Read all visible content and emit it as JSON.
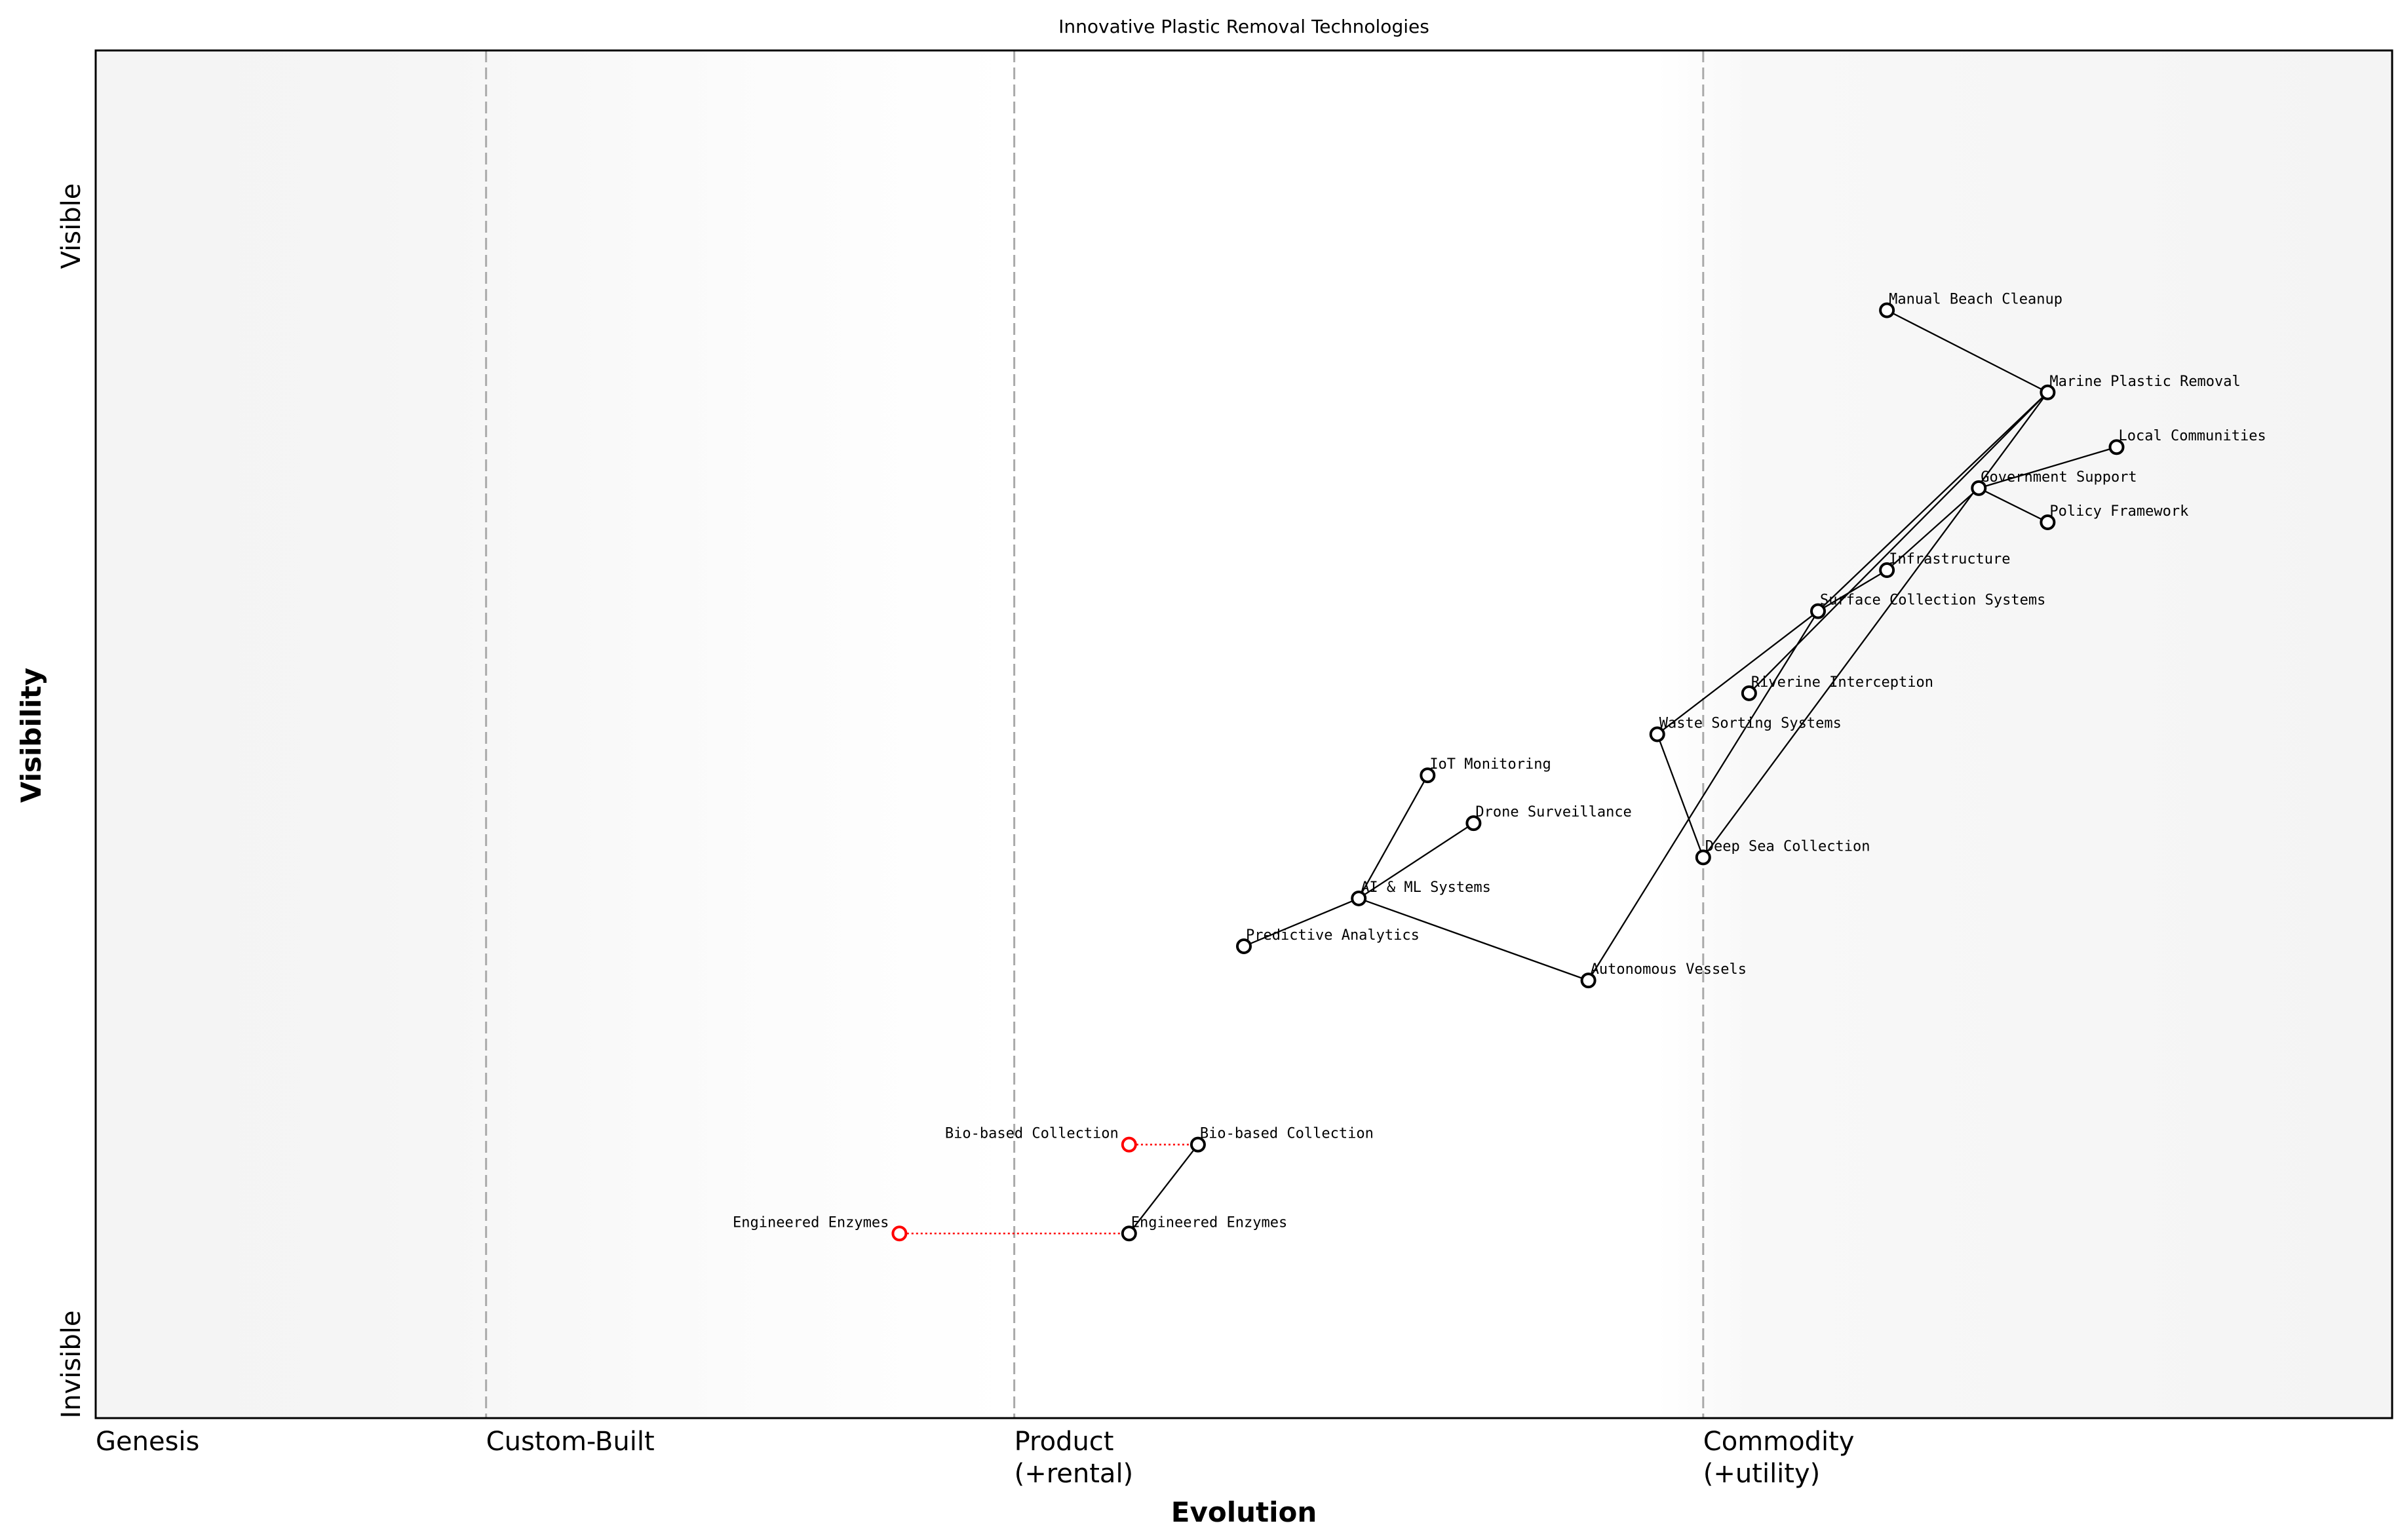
{
  "title": "Innovative Plastic Removal Technologies",
  "xlabel": "Evolution",
  "ylabel": "Visibility",
  "y_ticks": {
    "top": "Visible",
    "bottom": "Invisible"
  },
  "stages": [
    {
      "label": "Genesis",
      "x": 0.0
    },
    {
      "label": "Custom-Built",
      "x": 0.17
    },
    {
      "label": "Product",
      "label2": "(+rental)",
      "x": 0.4
    },
    {
      "label": "Commodity",
      "label2": "(+utility)",
      "x": 0.7
    }
  ],
  "colors": {
    "node": "#000000",
    "evolve": "#ff0000",
    "divider": "#aaaaaa"
  },
  "chart_data": {
    "type": "wardley-map",
    "xlim": [
      0,
      1
    ],
    "ylim": [
      0,
      1
    ],
    "components": [
      {
        "name": "Manual Beach Cleanup",
        "evolution": 0.78,
        "visibility": 0.81
      },
      {
        "name": "Marine Plastic Removal",
        "evolution": 0.85,
        "visibility": 0.75
      },
      {
        "name": "Local Communities",
        "evolution": 0.88,
        "visibility": 0.71
      },
      {
        "name": "Government Support",
        "evolution": 0.82,
        "visibility": 0.68
      },
      {
        "name": "Policy Framework",
        "evolution": 0.85,
        "visibility": 0.655
      },
      {
        "name": "Infrastructure",
        "evolution": 0.78,
        "visibility": 0.62
      },
      {
        "name": "Surface Collection Systems",
        "evolution": 0.75,
        "visibility": 0.59
      },
      {
        "name": "Riverine Interception",
        "evolution": 0.72,
        "visibility": 0.53
      },
      {
        "name": "Waste Sorting Systems",
        "evolution": 0.68,
        "visibility": 0.5
      },
      {
        "name": "IoT Monitoring",
        "evolution": 0.58,
        "visibility": 0.47
      },
      {
        "name": "Drone Surveillance",
        "evolution": 0.6,
        "visibility": 0.435
      },
      {
        "name": "Deep Sea Collection",
        "evolution": 0.7,
        "visibility": 0.41
      },
      {
        "name": "AI & ML Systems",
        "evolution": 0.55,
        "visibility": 0.38
      },
      {
        "name": "Predictive Analytics",
        "evolution": 0.5,
        "visibility": 0.345
      },
      {
        "name": "Autonomous Vessels",
        "evolution": 0.65,
        "visibility": 0.32
      },
      {
        "name": "Bio-based Collection",
        "evolution": 0.48,
        "visibility": 0.2
      },
      {
        "name": "Engineered Enzymes",
        "evolution": 0.45,
        "visibility": 0.135
      }
    ],
    "links": [
      [
        "Manual Beach Cleanup",
        "Marine Plastic Removal"
      ],
      [
        "Marine Plastic Removal",
        "Surface Collection Systems"
      ],
      [
        "Marine Plastic Removal",
        "Riverine Interception"
      ],
      [
        "Marine Plastic Removal",
        "Deep Sea Collection"
      ],
      [
        "Government Support",
        "Local Communities"
      ],
      [
        "Government Support",
        "Policy Framework"
      ],
      [
        "Government Support",
        "Infrastructure"
      ],
      [
        "Infrastructure",
        "Surface Collection Systems"
      ],
      [
        "Surface Collection Systems",
        "Waste Sorting Systems"
      ],
      [
        "Surface Collection Systems",
        "Autonomous Vessels"
      ],
      [
        "Waste Sorting Systems",
        "Deep Sea Collection"
      ],
      [
        "AI & ML Systems",
        "IoT Monitoring"
      ],
      [
        "AI & ML Systems",
        "Drone Surveillance"
      ],
      [
        "AI & ML Systems",
        "Predictive Analytics"
      ],
      [
        "AI & ML Systems",
        "Autonomous Vessels"
      ],
      [
        "Bio-based Collection",
        "Engineered Enzymes"
      ]
    ],
    "evolutions": [
      {
        "name": "Bio-based Collection",
        "from": 0.48,
        "to": 0.45,
        "visibility": 0.2
      },
      {
        "name": "Engineered Enzymes",
        "from": 0.45,
        "to": 0.35,
        "visibility": 0.135
      }
    ]
  }
}
